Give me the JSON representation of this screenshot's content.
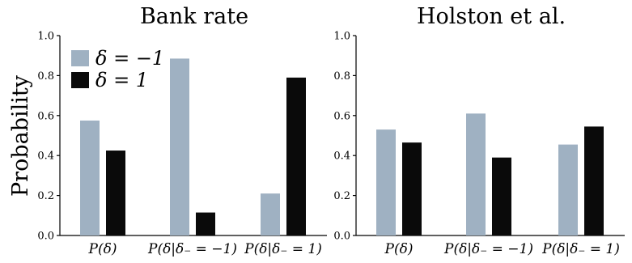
{
  "chart_data": [
    {
      "type": "bar",
      "title": "Bank rate",
      "ylabel": "Probability",
      "ylim": [
        0,
        1.0
      ],
      "yticks": [
        "0.0",
        "0.2",
        "0.4",
        "0.6",
        "0.8",
        "1.0"
      ],
      "categories": [
        "P(δ)",
        "P(δ|δ₋ = −1)",
        "P(δ|δ₋ = 1)"
      ],
      "series": [
        {
          "name": "δ = −1",
          "color": "#9fb1c2",
          "values": [
            0.575,
            0.885,
            0.21
          ]
        },
        {
          "name": "δ = 1",
          "color": "#0a0a0a",
          "values": [
            0.425,
            0.115,
            0.79
          ]
        }
      ],
      "legend": "top-left",
      "grid": false
    },
    {
      "type": "bar",
      "title": "Holston et al.",
      "ylim": [
        0,
        1.0
      ],
      "yticks": [
        "0.0",
        "0.2",
        "0.4",
        "0.6",
        "0.8",
        "1.0"
      ],
      "categories": [
        "P(δ)",
        "P(δ|δ₋ = −1)",
        "P(δ|δ₋ = 1)"
      ],
      "series": [
        {
          "name": "δ = −1",
          "color": "#9fb1c2",
          "values": [
            0.53,
            0.61,
            0.455
          ]
        },
        {
          "name": "δ = 1",
          "color": "#0a0a0a",
          "values": [
            0.465,
            0.39,
            0.545
          ]
        }
      ],
      "grid": false
    }
  ]
}
